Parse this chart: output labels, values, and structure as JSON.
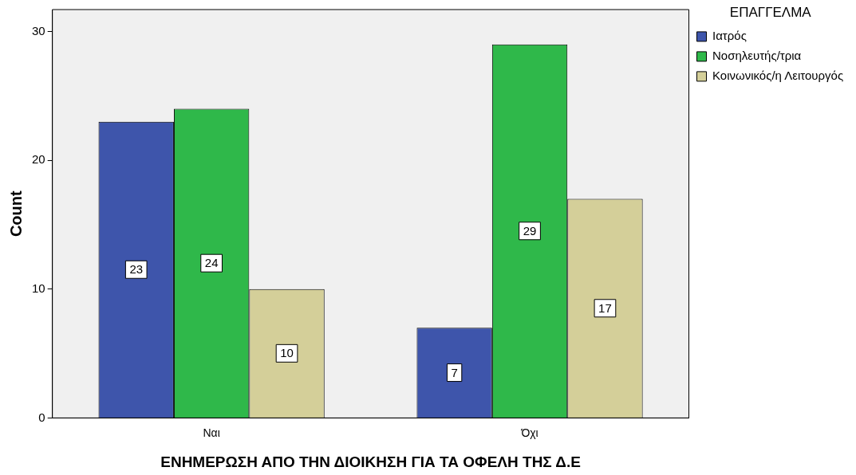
{
  "chart_data": {
    "type": "bar",
    "xlabel": "ΕΝΗΜΕΡΩΣΗ ΑΠΟ ΤΗΝ ΔΙΟΙΚΗΣΗ ΓΙΑ ΤΑ ΟΦΕΛΗ ΤΗΣ Δ.Ε",
    "ylabel": "Count",
    "legend_title": "ΕΠΑΓΓΕΛΜΑ",
    "categories": [
      "Ναι",
      "Όχι"
    ],
    "series": [
      {
        "name": "Ιατρός",
        "color": "#3e55ab",
        "values": [
          23,
          7
        ]
      },
      {
        "name": "Νοσηλευτής/τρια",
        "color": "#2fb84a",
        "values": [
          24,
          29
        ]
      },
      {
        "name": "Κοινωνικός/η Λειτουργός",
        "color": "#d4cf99",
        "values": [
          10,
          17
        ]
      }
    ],
    "ylim": [
      0,
      31.7
    ],
    "yticks": [
      0,
      10,
      20,
      30
    ],
    "grid": false,
    "legend": "top right",
    "data_labels": true
  }
}
